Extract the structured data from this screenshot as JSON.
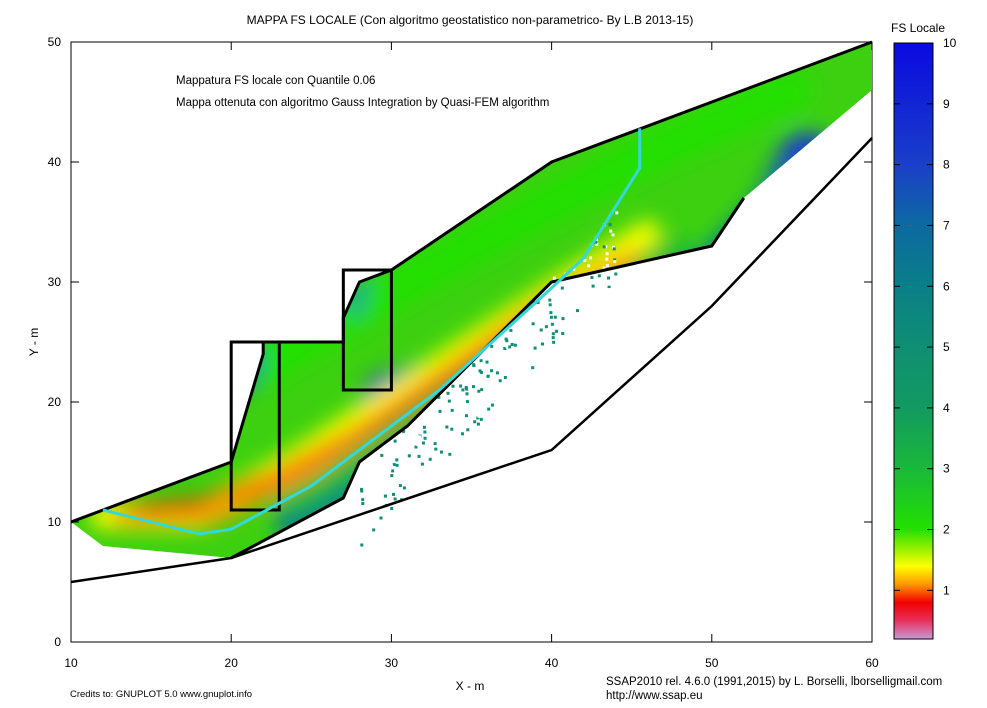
{
  "chart_data": {
    "type": "heatmap",
    "title": "MAPPA FS LOCALE (Con algoritmo geostatistico non-parametrico- By L.B 2013-15)",
    "xlabel": "X - m",
    "ylabel": "Y - m",
    "xlim": [
      10,
      60
    ],
    "ylim": [
      0,
      50
    ],
    "xticks": [
      10,
      20,
      30,
      40,
      50,
      60
    ],
    "yticks": [
      0,
      10,
      20,
      30,
      40,
      50
    ],
    "grid": false,
    "annotations": [
      "Mappatura FS locale con Quantile  0.06",
      "Mappa ottenuta con algoritmo Gauss Integration by Quasi-FEM algorithm"
    ],
    "colorbar": {
      "label": "FS Locale",
      "range": [
        0.2,
        10
      ],
      "ticks": [
        1,
        2,
        3,
        4,
        5,
        6,
        7,
        8,
        9,
        10
      ],
      "stops": [
        {
          "v": 0.2,
          "color": "#c89ad8"
        },
        {
          "v": 0.5,
          "color": "#e8305a"
        },
        {
          "v": 0.8,
          "color": "#f00000"
        },
        {
          "v": 1.1,
          "color": "#ff9800"
        },
        {
          "v": 1.4,
          "color": "#ffff00"
        },
        {
          "v": 2.0,
          "color": "#22e000"
        },
        {
          "v": 3.0,
          "color": "#1ab83a"
        },
        {
          "v": 4.0,
          "color": "#129a60"
        },
        {
          "v": 5.0,
          "color": "#0f8f73"
        },
        {
          "v": 6.0,
          "color": "#0a7f88"
        },
        {
          "v": 7.0,
          "color": "#0c6aa0"
        },
        {
          "v": 8.0,
          "color": "#1a3fc8"
        },
        {
          "v": 10.0,
          "color": "#0a0ae0"
        }
      ]
    },
    "slope_profile": [
      [
        10,
        10
      ],
      [
        20,
        15
      ],
      [
        22,
        24
      ],
      [
        22,
        25
      ],
      [
        27,
        25
      ],
      [
        27,
        27
      ],
      [
        28,
        30
      ],
      [
        30,
        31
      ],
      [
        40,
        40
      ],
      [
        60,
        50
      ]
    ],
    "base_line": [
      [
        10,
        5
      ],
      [
        20,
        7
      ],
      [
        40,
        16
      ],
      [
        50,
        28
      ],
      [
        60,
        42
      ]
    ],
    "sliding_surface": [
      [
        20,
        7
      ],
      [
        27,
        12
      ],
      [
        28,
        15
      ],
      [
        31,
        18
      ],
      [
        40,
        30
      ],
      [
        50,
        33
      ],
      [
        52,
        37
      ]
    ],
    "critical_surface": [
      [
        12,
        11
      ],
      [
        18,
        9
      ],
      [
        20,
        9.4
      ],
      [
        25,
        13
      ],
      [
        33,
        21
      ],
      [
        40,
        29.5
      ],
      [
        42,
        32
      ],
      [
        45.5,
        39.5
      ],
      [
        45.5,
        42.8
      ]
    ],
    "retaining_walls": [
      {
        "name": "lower-wall",
        "rect": [
          [
            20,
            11
          ],
          [
            23,
            25
          ]
        ]
      },
      {
        "name": "upper-wall",
        "rect": [
          [
            27,
            21
          ],
          [
            30,
            31
          ]
        ]
      }
    ]
  },
  "credits_left": "Credits to: GNUPLOT 5.0 www.gnuplot.info",
  "credits_right_1": "SSAP2010 rel. 4.6.0 (1991,2015) by L. Borselli, lborselligmail.com",
  "credits_right_2": "http://www.ssap.eu"
}
